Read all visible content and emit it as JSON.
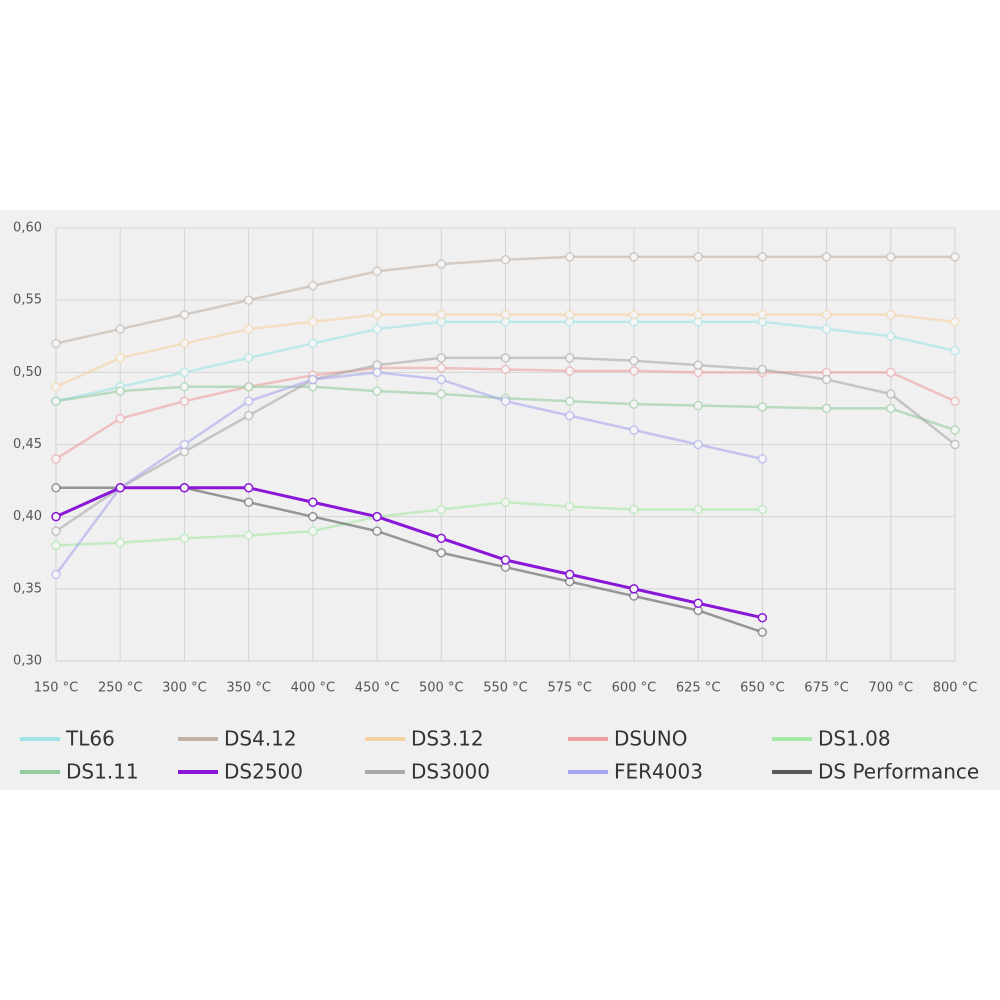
{
  "chart_data": {
    "type": "line",
    "categories": [
      "150 °C",
      "250 °C",
      "300 °C",
      "350 °C",
      "400 °C",
      "450 °C",
      "500 °C",
      "550 °C",
      "575 °C",
      "600 °C",
      "625 °C",
      "650 °C",
      "675 °C",
      "700 °C",
      "800 °C"
    ],
    "ylim": [
      0.3,
      0.6
    ],
    "yticks": [
      {
        "value": 0.3,
        "label": "0,30"
      },
      {
        "value": 0.35,
        "label": "0,35"
      },
      {
        "value": 0.4,
        "label": "0,40"
      },
      {
        "value": 0.45,
        "label": "0,45"
      },
      {
        "value": 0.5,
        "label": "0,50"
      },
      {
        "value": 0.55,
        "label": "0,55"
      },
      {
        "value": 0.6,
        "label": "0,60"
      }
    ],
    "grid": true,
    "legend": "bottom",
    "highlight": "DS2500",
    "series": [
      {
        "name": "TL66",
        "color": "#9fe3e6",
        "values": [
          0.48,
          0.49,
          0.5,
          0.51,
          0.52,
          0.53,
          0.535,
          0.535,
          0.535,
          0.535,
          0.535,
          0.535,
          0.53,
          0.525,
          0.515
        ]
      },
      {
        "name": "DS4.12",
        "color": "#c2b2a6",
        "values": [
          0.52,
          0.53,
          0.54,
          0.55,
          0.56,
          0.57,
          0.575,
          0.578,
          0.58,
          0.58,
          0.58,
          0.58,
          0.58,
          0.58,
          0.58
        ]
      },
      {
        "name": "DS3.12",
        "color": "#f5d2a2",
        "values": [
          0.49,
          0.51,
          0.52,
          0.53,
          0.535,
          0.54,
          0.54,
          0.54,
          0.54,
          0.54,
          0.54,
          0.54,
          0.54,
          0.54,
          0.535
        ]
      },
      {
        "name": "DSUNO",
        "color": "#eea0a0",
        "values": [
          0.44,
          0.468,
          0.48,
          0.49,
          0.498,
          0.503,
          0.503,
          0.502,
          0.501,
          0.501,
          0.5,
          0.5,
          0.5,
          0.5,
          0.48
        ]
      },
      {
        "name": "DS1.08",
        "color": "#a6e8a6",
        "values": [
          0.38,
          0.382,
          0.385,
          0.387,
          0.39,
          0.4,
          0.405,
          0.41,
          0.407,
          0.405,
          0.405,
          0.405,
          null,
          null,
          null
        ]
      },
      {
        "name": "DS1.11",
        "color": "#94cc9e",
        "values": [
          0.48,
          0.487,
          0.49,
          0.49,
          0.49,
          0.487,
          0.485,
          0.482,
          0.48,
          0.478,
          0.477,
          0.476,
          0.475,
          0.475,
          0.46
        ]
      },
      {
        "name": "DS2500",
        "color": "#8a16d8",
        "values": [
          0.4,
          0.42,
          0.42,
          0.42,
          0.41,
          0.4,
          0.385,
          0.37,
          0.36,
          0.35,
          0.34,
          0.33,
          null,
          null,
          null
        ]
      },
      {
        "name": "DS3000",
        "color": "#a8a8a8",
        "values": [
          0.39,
          0.42,
          0.445,
          0.47,
          0.495,
          0.505,
          0.51,
          0.51,
          0.51,
          0.508,
          0.505,
          0.502,
          0.495,
          0.485,
          0.45
        ]
      },
      {
        "name": "FER4003",
        "color": "#a6a6ee",
        "values": [
          0.36,
          0.42,
          0.45,
          0.48,
          0.495,
          0.5,
          0.495,
          0.48,
          0.47,
          0.46,
          0.45,
          0.44,
          null,
          null,
          null
        ]
      },
      {
        "name": "DS Performance",
        "color": "#5a5a5a",
        "values": [
          0.42,
          0.42,
          0.42,
          0.41,
          0.4,
          0.39,
          0.375,
          0.365,
          0.355,
          0.345,
          0.335,
          0.32,
          null,
          null,
          null
        ]
      }
    ]
  }
}
